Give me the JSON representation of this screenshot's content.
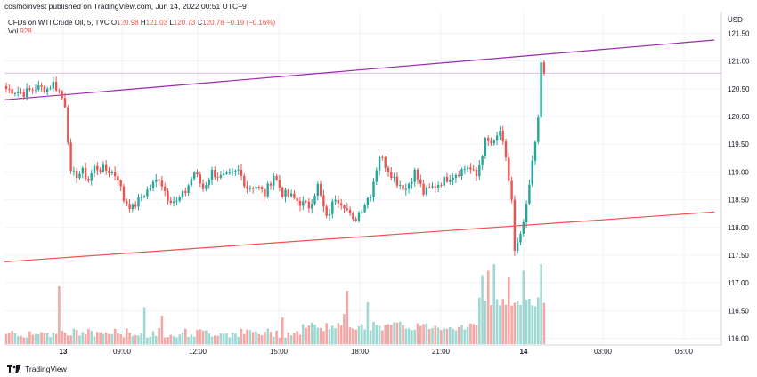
{
  "header": {
    "published": "cosmoinvest published on TradingView.com, Jun 14, 2022 00:51 UTC+9"
  },
  "legend": {
    "symbol": "CFDs on WTI Crude Oil, 5, TVC",
    "o_label": "O",
    "o_value": "120.98",
    "h_label": "H",
    "h_value": "121.03",
    "l_label": "L",
    "l_value": "120.73",
    "c_label": "C",
    "c_value": "120.78",
    "change": "−0.19 (−0.16%)",
    "vol_label": "Vol",
    "vol_value": "928"
  },
  "branding": {
    "name": "TradingView",
    "icon": "tradingview-logo-icon"
  },
  "colors": {
    "up": "#26a69a",
    "down": "#ef5350",
    "upVol": "#9fd8d2",
    "downVol": "#f4a7a5",
    "trendUpper": "#9c27b0",
    "trendLower": "#ef5350",
    "priceLine": "#e1bee7"
  },
  "chart_data": {
    "type": "candlestick",
    "currency": "USD",
    "y_ticks": [
      "121.50",
      "121.00",
      "120.50",
      "120.00",
      "119.50",
      "119.00",
      "118.50",
      "118.00",
      "117.50",
      "117.00",
      "116.50",
      "116.00"
    ],
    "ylim": [
      115.9,
      121.75
    ],
    "x_ticks": [
      "13",
      "09:00",
      "12:00",
      "15:00",
      "18:00",
      "21:00",
      "14",
      "03:00",
      "06:00"
    ],
    "x_tick_bold": [
      "13",
      "14"
    ],
    "last_price": 120.78,
    "trendlines": [
      {
        "color_key": "trendUpper",
        "from": [
          0,
          120.3
        ],
        "to": [
          241,
          121.38
        ]
      },
      {
        "color_key": "trendLower",
        "from": [
          0,
          117.38
        ],
        "to": [
          241,
          118.28
        ]
      }
    ],
    "anchors": [
      [
        0,
        120.5
      ],
      [
        6,
        120.42
      ],
      [
        10,
        120.52
      ],
      [
        14,
        120.5
      ],
      [
        16,
        120.6
      ],
      [
        18,
        120.45
      ],
      [
        20,
        120.22
      ],
      [
        21,
        119.6
      ],
      [
        22,
        118.95
      ],
      [
        24,
        118.95
      ],
      [
        26,
        119.0
      ],
      [
        28,
        118.85
      ],
      [
        30,
        119.08
      ],
      [
        33,
        119.05
      ],
      [
        36,
        119.0
      ],
      [
        38,
        118.9
      ],
      [
        40,
        118.5
      ],
      [
        43,
        118.35
      ],
      [
        46,
        118.55
      ],
      [
        49,
        118.72
      ],
      [
        52,
        118.9
      ],
      [
        55,
        118.55
      ],
      [
        58,
        118.45
      ],
      [
        61,
        118.65
      ],
      [
        64,
        119.0
      ],
      [
        67,
        118.7
      ],
      [
        70,
        119.0
      ],
      [
        73,
        118.9
      ],
      [
        76,
        118.92
      ],
      [
        79,
        119.02
      ],
      [
        82,
        118.72
      ],
      [
        85,
        118.75
      ],
      [
        88,
        118.6
      ],
      [
        91,
        118.95
      ],
      [
        94,
        118.62
      ],
      [
        97,
        118.55
      ],
      [
        100,
        118.45
      ],
      [
        103,
        118.38
      ],
      [
        106,
        118.75
      ],
      [
        109,
        118.15
      ],
      [
        112,
        118.55
      ],
      [
        115,
        118.42
      ],
      [
        118,
        118.1
      ],
      [
        121,
        118.35
      ],
      [
        124,
        118.62
      ],
      [
        127,
        119.3
      ],
      [
        130,
        119.05
      ],
      [
        133,
        118.82
      ],
      [
        136,
        118.7
      ],
      [
        139,
        119.0
      ],
      [
        142,
        118.62
      ],
      [
        145,
        118.72
      ],
      [
        148,
        118.82
      ],
      [
        151,
        118.92
      ],
      [
        154,
        119.0
      ],
      [
        157,
        119.1
      ],
      [
        160,
        118.92
      ],
      [
        163,
        119.55
      ],
      [
        166,
        119.5
      ],
      [
        168,
        119.75
      ],
      [
        170,
        119.2
      ],
      [
        172,
        118.5
      ],
      [
        173,
        117.55
      ],
      [
        175,
        117.82
      ],
      [
        177,
        118.35
      ],
      [
        179,
        119.15
      ],
      [
        180,
        119.55
      ],
      [
        181,
        120.05
      ],
      [
        182,
        120.9
      ],
      [
        183,
        120.78
      ]
    ],
    "volume": {
      "max": 1900,
      "baseline": 240,
      "spikes": [
        [
          18,
          1300
        ],
        [
          47,
          830
        ],
        [
          53,
          640
        ],
        [
          94,
          600
        ],
        [
          115,
          680
        ],
        [
          116,
          1200
        ],
        [
          123,
          940
        ],
        [
          162,
          1550
        ],
        [
          164,
          1650
        ],
        [
          166,
          1800
        ],
        [
          171,
          1500
        ],
        [
          176,
          1650
        ],
        [
          182,
          1800
        ],
        [
          183,
          928
        ]
      ]
    }
  }
}
